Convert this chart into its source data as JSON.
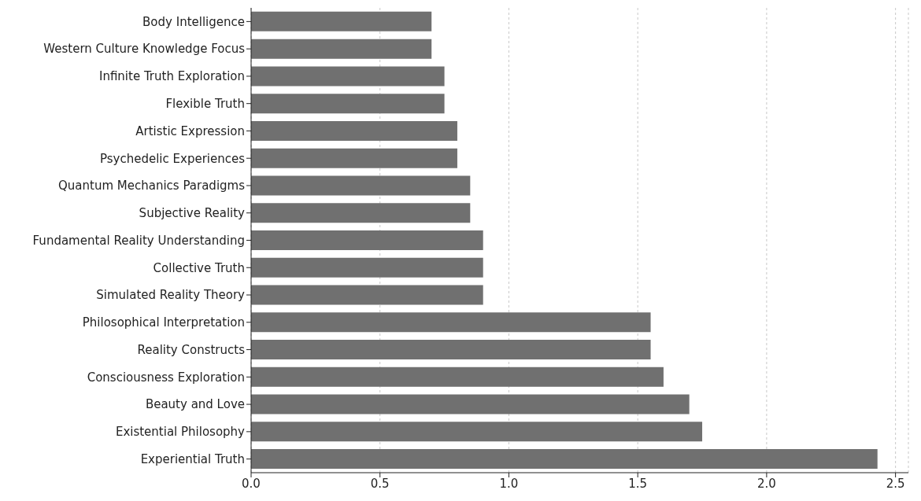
{
  "chart_data": {
    "type": "bar",
    "orientation": "horizontal",
    "categories": [
      "Body Intelligence",
      "Western Culture Knowledge Focus",
      "Infinite Truth Exploration",
      "Flexible Truth",
      "Artistic Expression",
      "Psychedelic Experiences",
      "Quantum Mechanics Paradigms",
      "Subjective Reality",
      "Fundamental Reality Understanding",
      "Collective Truth",
      "Simulated Reality Theory",
      "Philosophical Interpretation",
      "Reality Constructs",
      "Consciousness Exploration",
      "Beauty and Love",
      "Existential Philosophy",
      "Experiential Truth"
    ],
    "values": [
      0.7,
      0.7,
      0.75,
      0.75,
      0.8,
      0.8,
      0.85,
      0.85,
      0.9,
      0.9,
      0.9,
      1.55,
      1.55,
      1.6,
      1.7,
      1.75,
      2.43
    ],
    "color": "#707070",
    "xlim": [
      0,
      2.55
    ],
    "xticks": [
      {
        "value": 0,
        "label": "0.0"
      },
      0.5,
      {
        "value": 1,
        "label": "1.0"
      },
      1.5,
      {
        "value": 2,
        "label": "2.0"
      },
      2.5
    ],
    "grid": "x"
  }
}
